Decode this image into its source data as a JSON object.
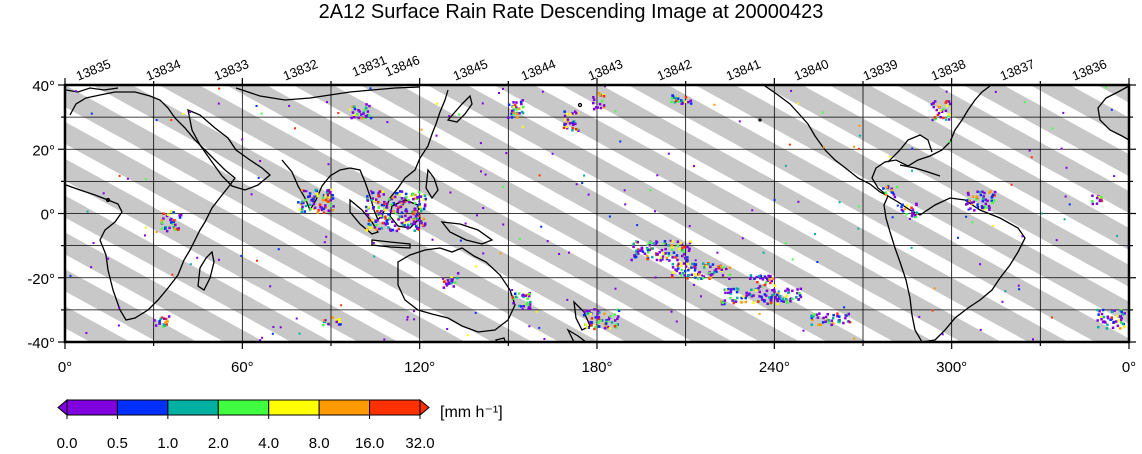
{
  "title": "2A12 Surface Rain Rate Descending Image at 20000423",
  "orbits": [
    "13835",
    "13834",
    "13833",
    "13832",
    "13831",
    "13846",
    "13845",
    "13844",
    "13843",
    "13842",
    "13841",
    "13840",
    "13839",
    "13838",
    "13837",
    "13836"
  ],
  "lat_labels": [
    "40°",
    "20°",
    "0°",
    "-20°",
    "-40°"
  ],
  "lon_labels": [
    "0°",
    "60°",
    "120°",
    "180°",
    "240°",
    "300°",
    "0°"
  ],
  "colorbar": {
    "unit": "[mm h⁻¹]",
    "ticks": [
      "0.0",
      "0.5",
      "1.0",
      "2.0",
      "4.0",
      "8.0",
      "16.0",
      "32.0"
    ],
    "colors": [
      "#8000e0",
      "#0030ff",
      "#00b0a0",
      "#40ff40",
      "#ffff00",
      "#ff9900",
      "#ff3000"
    ]
  },
  "colors": {
    "swath": "#c8c8c8",
    "coast": "#000000"
  }
}
